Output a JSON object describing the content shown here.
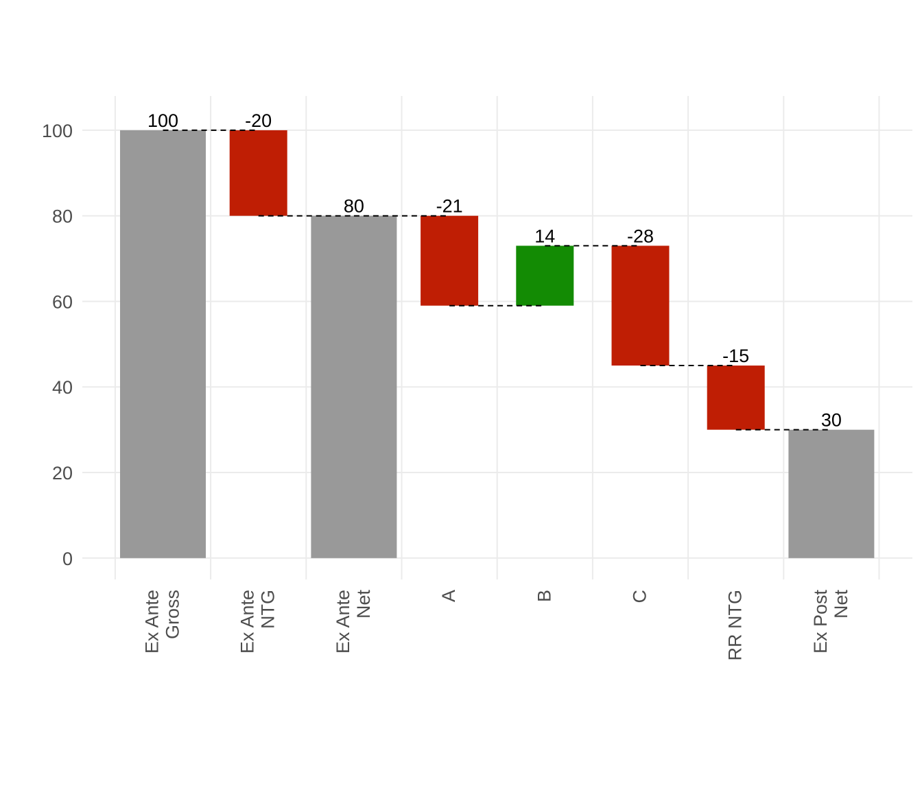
{
  "chart_data": {
    "type": "bar",
    "subtype": "waterfall",
    "title": "",
    "xlabel": "",
    "ylabel": "",
    "categories": [
      [
        "Ex Ante",
        "Gross"
      ],
      [
        "Ex Ante",
        "NTG"
      ],
      [
        "Ex Ante",
        "Net"
      ],
      [
        "A"
      ],
      [
        "B"
      ],
      [
        "C"
      ],
      [
        "RR NTG"
      ],
      [
        "Ex Post",
        "Net"
      ]
    ],
    "bars": [
      {
        "start": 0,
        "end": 100,
        "kind": "total",
        "label": "100"
      },
      {
        "start": 100,
        "end": 80,
        "kind": "decrease",
        "label": "-20"
      },
      {
        "start": 0,
        "end": 80,
        "kind": "total",
        "label": "80"
      },
      {
        "start": 80,
        "end": 59,
        "kind": "decrease",
        "label": "-21"
      },
      {
        "start": 59,
        "end": 73,
        "kind": "increase",
        "label": "14"
      },
      {
        "start": 73,
        "end": 45,
        "kind": "decrease",
        "label": "-28"
      },
      {
        "start": 45,
        "end": 30,
        "kind": "decrease",
        "label": "-15"
      },
      {
        "start": 0,
        "end": 30,
        "kind": "total",
        "label": "30"
      }
    ],
    "ylim": [
      -5,
      108
    ],
    "yticks": [
      0,
      20,
      40,
      60,
      80,
      100
    ],
    "grid": true,
    "legend": "none",
    "colors": {
      "total": "#999999",
      "decrease": "#bf1e04",
      "increase": "#138b04",
      "grid": "#ebebeb",
      "connector": "#000000"
    }
  }
}
